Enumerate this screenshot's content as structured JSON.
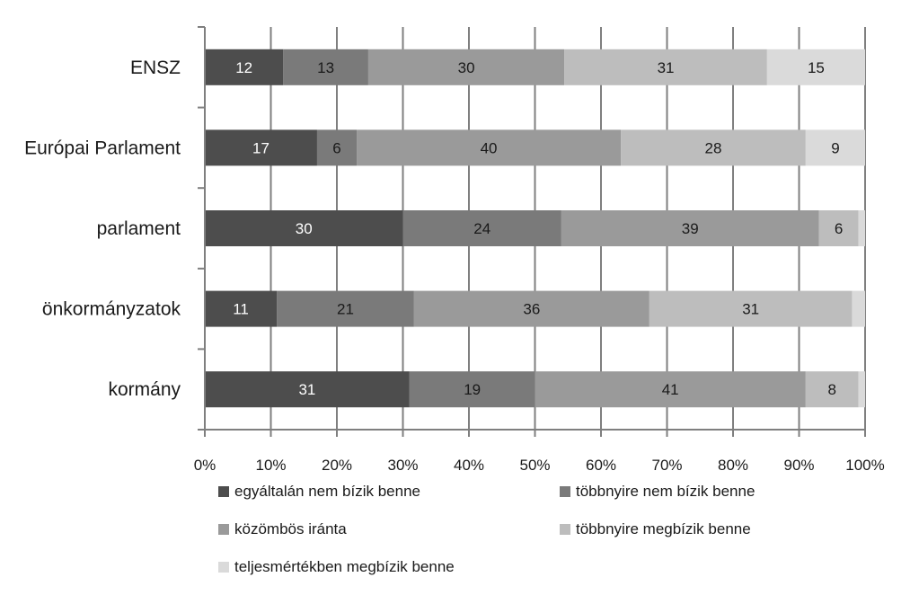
{
  "chart_data": {
    "type": "bar",
    "orientation": "horizontal",
    "stacked": true,
    "normalized": true,
    "title": "",
    "xlabel": "",
    "ylabel": "",
    "xlim": [
      0,
      100
    ],
    "grid": true,
    "legend_position": "bottom",
    "categories": [
      "ENSZ",
      "Európai Parlament",
      "parlament",
      "önkormányzatok",
      "kormány"
    ],
    "ticks": [
      "0%",
      "10%",
      "20%",
      "30%",
      "40%",
      "50%",
      "60%",
      "70%",
      "80%",
      "90%",
      "100%"
    ],
    "series": [
      {
        "name": "egyáltalán nem bízik benne",
        "color": "#4d4d4d",
        "label_color": "#ffffff",
        "values": [
          12,
          17,
          30,
          11,
          31
        ]
      },
      {
        "name": "többnyire nem bízik benne",
        "color": "#7a7a7a",
        "label_color": "#1a1a1a",
        "values": [
          13,
          6,
          24,
          21,
          19
        ]
      },
      {
        "name": "közömbös iránta",
        "color": "#9a9a9a",
        "label_color": "#1a1a1a",
        "values": [
          30,
          40,
          39,
          36,
          41
        ]
      },
      {
        "name": "többnyire megbízik benne",
        "color": "#bdbdbd",
        "label_color": "#1a1a1a",
        "values": [
          31,
          28,
          6,
          31,
          8
        ]
      },
      {
        "name": "teljesmértékben megbízik benne",
        "color": "#dadada",
        "label_color": "#1a1a1a",
        "values": [
          15,
          9,
          1,
          2,
          1
        ]
      }
    ],
    "data_labels": [
      [
        "12",
        "13",
        "30",
        "31",
        "15"
      ],
      [
        "17",
        "6",
        "40",
        "28",
        "9"
      ],
      [
        "30",
        "24",
        "39",
        "6",
        ""
      ],
      [
        "11",
        "21",
        "36",
        "31",
        ""
      ],
      [
        "31",
        "19",
        "41",
        "8",
        ""
      ]
    ]
  }
}
